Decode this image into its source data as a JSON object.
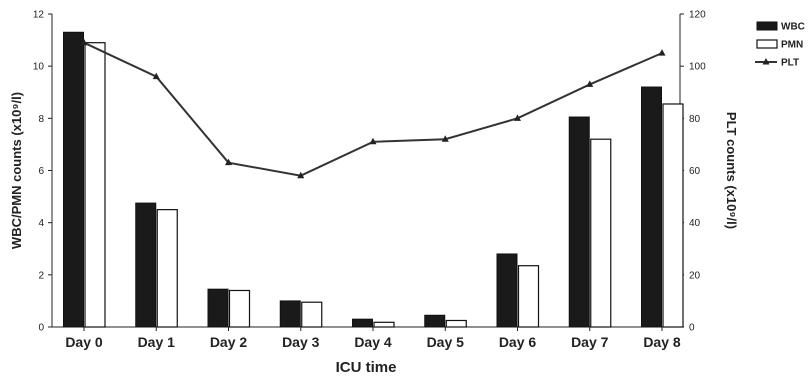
{
  "chart_data": {
    "type": "bar+line",
    "categories": [
      "Day 0",
      "Day 1",
      "Day 2",
      "Day 3",
      "Day 4",
      "Day 5",
      "Day 6",
      "Day 7",
      "Day 8"
    ],
    "xlabel": "ICU time",
    "ylabel_left": "WBC/PMN counts (x10⁹/l)",
    "ylabel_right": "PLT counts (x10⁹/l)",
    "ylim_left": [
      0,
      12
    ],
    "yticks_left": [
      0,
      2,
      4,
      6,
      8,
      10,
      12
    ],
    "ylim_right": [
      0,
      120
    ],
    "yticks_right": [
      0,
      20,
      40,
      60,
      80,
      100,
      120
    ],
    "grid": false,
    "legend_position": "top-right",
    "series": [
      {
        "name": "WBC",
        "kind": "bar",
        "axis": "left",
        "color": "#1a1a1a",
        "values": [
          11.3,
          4.75,
          1.45,
          1.0,
          0.3,
          0.45,
          2.8,
          8.05,
          9.2
        ]
      },
      {
        "name": "PMN",
        "kind": "bar",
        "axis": "left",
        "color": "#ffffff",
        "values": [
          10.9,
          4.5,
          1.4,
          0.95,
          0.18,
          0.25,
          2.35,
          7.2,
          8.55
        ]
      },
      {
        "name": "PLT",
        "kind": "line",
        "axis": "right",
        "color": "#333333",
        "marker": "triangle",
        "values": [
          109,
          96,
          63,
          58,
          71,
          72,
          80,
          93,
          105
        ]
      }
    ]
  }
}
